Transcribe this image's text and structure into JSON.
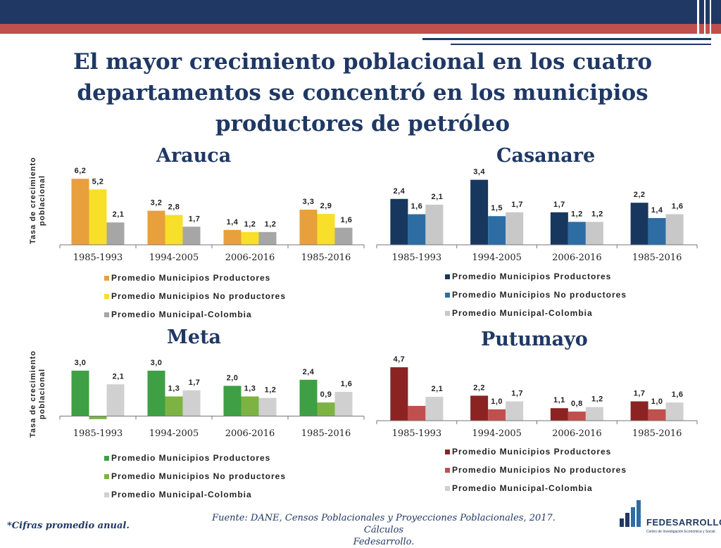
{
  "slide": {
    "title_lines": [
      "El mayor crecimiento poblacional en los cuatro",
      "departamentos se concentró en los municipios",
      "productores de petróleo"
    ],
    "footnote": "*Cifras promedio anual.",
    "source_lines": [
      "Fuente: DANE, Censos Poblacionales y Proyecciones Poblacionales, 2017. Cálculos",
      "Fedesarrollo."
    ],
    "logo": {
      "name": "FEDESARROLLO",
      "tagline": "Centro de Investigación Económica y Social"
    },
    "colors": {
      "title": "#1f3864",
      "header_blue": "#1f3864",
      "header_red": "#c0504d"
    }
  },
  "chart_data": [
    {
      "type": "bar",
      "title": "Arauca",
      "ylabel": "Tasa de crecimiento poblacional",
      "xlabel": "",
      "categories": [
        "1985-1993",
        "1994-2005",
        "2006-2016",
        "1985-2016"
      ],
      "series": [
        {
          "name": "Promedio Municipios Productores",
          "color": "#e8a03c",
          "values": [
            6.2,
            3.2,
            1.4,
            3.3
          ],
          "labels": [
            "6,2",
            "3,2",
            "1,4",
            "3,3"
          ]
        },
        {
          "name": "Promedio Municipios No productores",
          "color": "#f7df2a",
          "values": [
            5.2,
            2.8,
            1.2,
            2.9
          ],
          "labels": [
            "5,2",
            "2,8",
            "1,2",
            "2,9"
          ]
        },
        {
          "name": "Promedio Municipal-Colombia",
          "color": "#a6a6a6",
          "values": [
            2.1,
            1.7,
            1.2,
            1.6
          ],
          "labels": [
            "2,1",
            "1,7",
            "1,2",
            "1,6"
          ]
        }
      ],
      "ylim": [
        0,
        7
      ],
      "grid": false,
      "legend": "bottom"
    },
    {
      "type": "bar",
      "title": "Casanare",
      "ylabel": "",
      "xlabel": "",
      "categories": [
        "1985-1993",
        "1994-2005",
        "2006-2016",
        "1985-2016"
      ],
      "series": [
        {
          "name": "Promedio Municipios Productores",
          "color": "#17375e",
          "values": [
            2.4,
            3.4,
            1.7,
            2.2
          ],
          "labels": [
            "2,4",
            "3,4",
            "1,7",
            "2,2"
          ]
        },
        {
          "name": "Promedio Municipios No productores",
          "color": "#2e6da4",
          "values": [
            1.6,
            1.5,
            1.2,
            1.4
          ],
          "labels": [
            "1,6",
            "1,5",
            "1,2",
            "1,4"
          ]
        },
        {
          "name": "Promedio Municipal-Colombia",
          "color": "#c8c8c8",
          "values": [
            2.1,
            1.7,
            1.2,
            1.6
          ],
          "labels": [
            "2,1",
            "1,7",
            "1,2",
            "1,6"
          ]
        }
      ],
      "ylim": [
        0,
        3.9
      ],
      "grid": false,
      "legend": "bottom"
    },
    {
      "type": "bar",
      "title": "Meta",
      "ylabel": "Tasa de crecimiento poblacional",
      "xlabel": "",
      "categories": [
        "1985-1993",
        "1994-2005",
        "2006-2016",
        "1985-2016"
      ],
      "series": [
        {
          "name": "Promedio Municipios Productores",
          "color": "#3f9f45",
          "values": [
            3.0,
            3.0,
            2.0,
            2.4
          ],
          "labels": [
            "3,0",
            "3,0",
            "2,0",
            "2,4"
          ]
        },
        {
          "name": "Promedio Municipios No productores",
          "color": "#7cb342",
          "values": [
            -0.2,
            1.3,
            1.3,
            0.9
          ],
          "labels": [
            "",
            "1,3",
            "1,3",
            "0,9"
          ]
        },
        {
          "name": "Promedio Municipal-Colombia",
          "color": "#d0d0d0",
          "values": [
            2.1,
            1.7,
            1.2,
            1.6
          ],
          "labels": [
            "2,1",
            "1,7",
            "1,2",
            "1,6"
          ]
        }
      ],
      "ylim": [
        -0.3,
        3.6
      ],
      "grid": false,
      "legend": "bottom"
    },
    {
      "type": "bar",
      "title": "Putumayo",
      "ylabel": "",
      "xlabel": "",
      "categories": [
        "1985-1993",
        "1994-2005",
        "2006-2016",
        "1985-2016"
      ],
      "series": [
        {
          "name": "Promedio Municipios Productores",
          "color": "#8b2323",
          "values": [
            4.7,
            2.2,
            1.1,
            1.7
          ],
          "labels": [
            "4,7",
            "2,2",
            "1,1",
            "1,7"
          ]
        },
        {
          "name": "Promedio Municipios No productores",
          "color": "#c0504d",
          "values": [
            1.3,
            1.0,
            0.8,
            1.0
          ],
          "labels": [
            "",
            "1,0",
            "0,8",
            "1,0"
          ]
        },
        {
          "name": "Promedio Municipal-Colombia",
          "color": "#d0d0d0",
          "values": [
            2.1,
            1.7,
            1.2,
            1.6
          ],
          "labels": [
            "2,1",
            "1,7",
            "1,2",
            "1,6"
          ]
        }
      ],
      "ylim": [
        0,
        5.2
      ],
      "grid": false,
      "legend": "bottom"
    }
  ]
}
